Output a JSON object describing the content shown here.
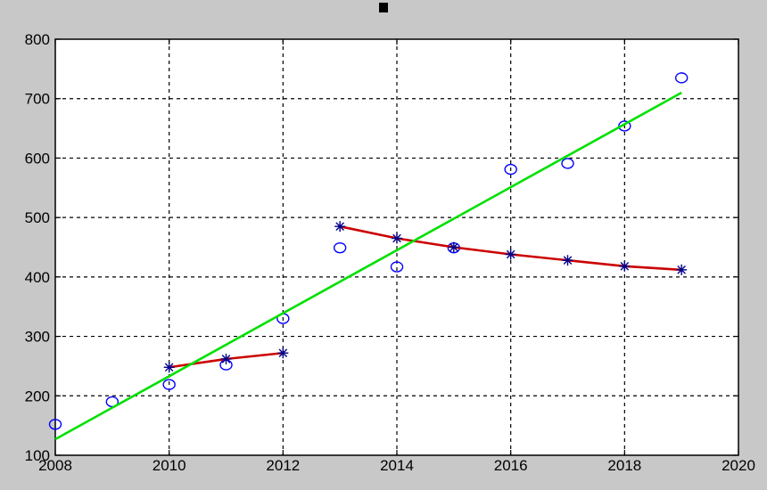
{
  "chart_data": {
    "type": "scatter",
    "title": "",
    "xlabel": "",
    "ylabel": "",
    "xlim": [
      2008,
      2020
    ],
    "ylim": [
      100,
      800
    ],
    "x_ticks": [
      2008,
      2010,
      2012,
      2014,
      2016,
      2018,
      2020
    ],
    "y_ticks": [
      100,
      200,
      300,
      400,
      500,
      600,
      700,
      800
    ],
    "grid": true,
    "grid_style": "dashed",
    "series": [
      {
        "marker": "circle",
        "line": "none",
        "color": "#0000ff",
        "x": [
          2008,
          2009,
          2010,
          2011,
          2012,
          2013,
          2014,
          2015,
          2016,
          2017,
          2018,
          2019
        ],
        "y": [
          152,
          190,
          219,
          252,
          330,
          449,
          417,
          449,
          581,
          591,
          654,
          735
        ]
      },
      {
        "marker": "star",
        "line": "solid",
        "color": "#00008b",
        "line_color": "#cc0000",
        "x": [
          2010,
          2011,
          2012
        ],
        "y": [
          248,
          262,
          272
        ]
      },
      {
        "marker": "star",
        "line": "solid",
        "color": "#00008b",
        "line_color": "#cc0000",
        "x": [
          2013,
          2014,
          2015,
          2016,
          2017,
          2018,
          2019
        ],
        "y": [
          485,
          465,
          450,
          438,
          428,
          418,
          412
        ]
      },
      {
        "marker": "none",
        "line": "solid",
        "color": "#00e000",
        "x": [
          2008,
          2019
        ],
        "y": [
          127,
          710
        ]
      }
    ]
  }
}
